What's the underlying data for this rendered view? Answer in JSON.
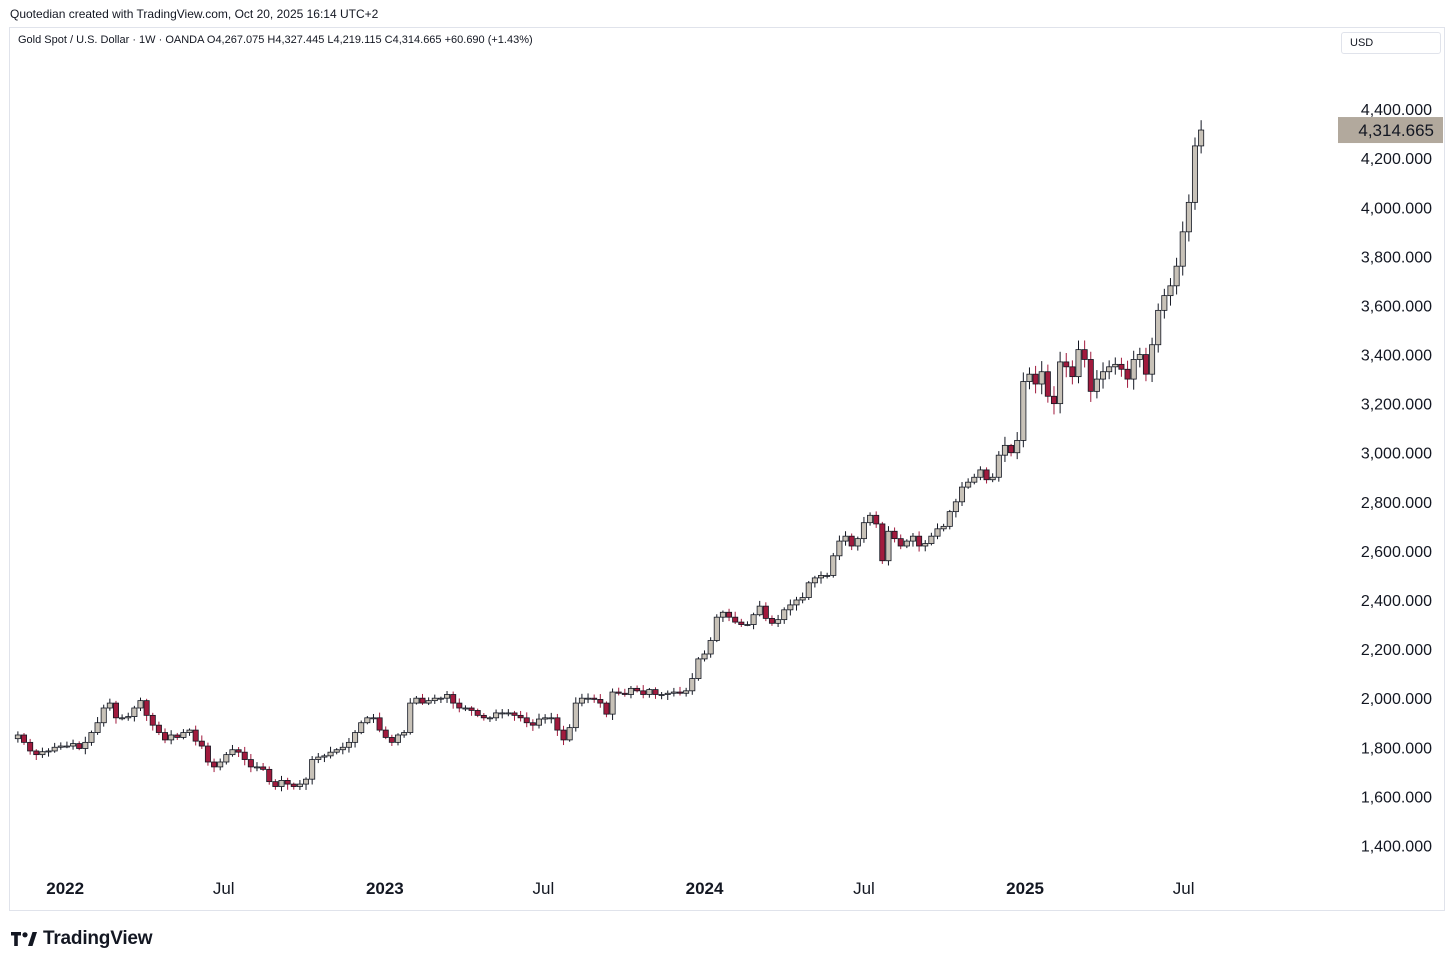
{
  "header": {
    "credit": "Quotedian created with TradingView.com, Oct 20, 2025 16:14 UTC+2",
    "legend": "Gold Spot / U.S. Dollar · 1W · OANDA  O4,267.075  H4,327.445  L4,219.115  C4,314.665  +60.690 (+1.43%)",
    "currency": "USD"
  },
  "footer": {
    "brand": "TradingView"
  },
  "colors": {
    "up_body": "#c8c2b8",
    "down_body": "#a11a3d",
    "outline": "#131722",
    "last_price_bg": "#b2a99d"
  },
  "chart_data": {
    "type": "candlestick",
    "title": "Gold Spot / U.S. Dollar · 1W · OANDA",
    "ylim": [
      1300,
      4600
    ],
    "y_ticks": [
      {
        "value": 4400,
        "label": "4,400.000"
      },
      {
        "value": 4200,
        "label": "4,200.000"
      },
      {
        "value": 4000,
        "label": "4,000.000"
      },
      {
        "value": 3800,
        "label": "3,800.000"
      },
      {
        "value": 3600,
        "label": "3,600.000"
      },
      {
        "value": 3400,
        "label": "3,400.000"
      },
      {
        "value": 3200,
        "label": "3,200.000"
      },
      {
        "value": 3000,
        "label": "3,000.000"
      },
      {
        "value": 2800,
        "label": "2,800.000"
      },
      {
        "value": 2600,
        "label": "2,600.000"
      },
      {
        "value": 2400,
        "label": "2,400.000"
      },
      {
        "value": 2200,
        "label": "2,200.000"
      },
      {
        "value": 2000,
        "label": "2,000.000"
      },
      {
        "value": 1800,
        "label": "1,800.000"
      },
      {
        "value": 1600,
        "label": "1,600.000"
      },
      {
        "value": 1400,
        "label": "1,400.000"
      }
    ],
    "x_ticks": [
      {
        "date": "2022-01-01",
        "label": "2022",
        "bold": true
      },
      {
        "date": "2022-07-01",
        "label": "Jul",
        "bold": false
      },
      {
        "date": "2023-01-01",
        "label": "2023",
        "bold": true
      },
      {
        "date": "2023-07-01",
        "label": "Jul",
        "bold": false
      },
      {
        "date": "2024-01-01",
        "label": "2024",
        "bold": true
      },
      {
        "date": "2024-07-01",
        "label": "Jul",
        "bold": false
      },
      {
        "date": "2025-01-01",
        "label": "2025",
        "bold": true
      },
      {
        "date": "2025-07-01",
        "label": "Jul",
        "bold": false
      }
    ],
    "xlim": [
      "2021-10-30",
      "2025-12-22"
    ],
    "last_price": {
      "value": 4314.665,
      "label": "4,314.665"
    },
    "first_week": "2021-11-08",
    "closes": [
      1850,
      1820,
      1785,
      1770,
      1782,
      1785,
      1800,
      1805,
      1805,
      1815,
      1795,
      1820,
      1860,
      1900,
      1960,
      1980,
      1920,
      1920,
      1925,
      1960,
      1990,
      1930,
      1890,
      1860,
      1830,
      1850,
      1840,
      1860,
      1870,
      1825,
      1805,
      1740,
      1720,
      1740,
      1770,
      1790,
      1780,
      1750,
      1720,
      1720,
      1710,
      1660,
      1640,
      1665,
      1650,
      1640,
      1650,
      1670,
      1750,
      1760,
      1765,
      1780,
      1790,
      1800,
      1820,
      1860,
      1900,
      1920,
      1920,
      1870,
      1840,
      1820,
      1850,
      1860,
      1980,
      2000,
      1980,
      1990,
      2000,
      2000,
      2015,
      1980,
      1960,
      1960,
      1950,
      1930,
      1920,
      1920,
      1940,
      1940,
      1940,
      1930,
      1920,
      1900,
      1890,
      1915,
      1920,
      1920,
      1870,
      1830,
      1880,
      1980,
      2000,
      2000,
      1995,
      1980,
      1935,
      2025,
      2020,
      2015,
      2040,
      2030,
      2015,
      2035,
      2015,
      2015,
      2020,
      2025,
      2020,
      2030,
      2080,
      2160,
      2180,
      2235,
      2330,
      2350,
      2330,
      2310,
      2300,
      2300,
      2340,
      2375,
      2325,
      2305,
      2320,
      2360,
      2380,
      2400,
      2410,
      2470,
      2490,
      2500,
      2500,
      2580,
      2640,
      2660,
      2620,
      2650,
      2715,
      2745,
      2710,
      2560,
      2680,
      2650,
      2620,
      2640,
      2660,
      2620,
      2630,
      2660,
      2690,
      2700,
      2760,
      2800,
      2860,
      2880,
      2900,
      2930,
      2890,
      2900,
      2990,
      3030,
      3000,
      3050,
      3290,
      3320,
      3280,
      3330,
      3230,
      3200,
      3370,
      3350,
      3310,
      3420,
      3380,
      3250,
      3300,
      3330,
      3350,
      3360,
      3340,
      3300,
      3380,
      3400,
      3320,
      3440,
      3580,
      3640,
      3680,
      3760,
      3900,
      4020,
      4250,
      4314.665
    ]
  }
}
